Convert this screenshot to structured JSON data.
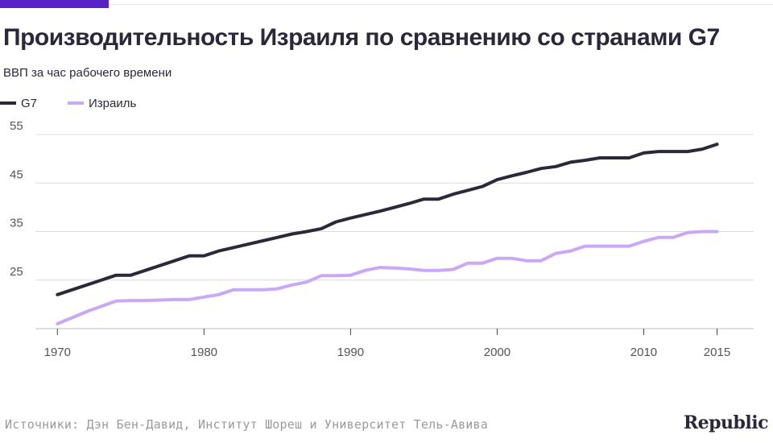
{
  "header": {
    "title": "Производительность Израиля по сравнению со странами G7",
    "subtitle": "ВВП за час рабочего времени"
  },
  "colors": {
    "accent": "#5b21c9",
    "g7": "#2b2839",
    "israel": "#c9a8f5",
    "grid": "#dcdcdc"
  },
  "legend": [
    {
      "label": "G7",
      "color": "#2b2839"
    },
    {
      "label": "Израиль",
      "color": "#c9a8f5"
    }
  ],
  "chart_data": {
    "type": "line",
    "title": "Производительность Израиля по сравнению со странами G7",
    "ylabel": "ВВП за час рабочего времени",
    "xlim": [
      1968.5,
      2017.5
    ],
    "ylim": [
      15,
      57
    ],
    "y_ticks": [
      25,
      35,
      45,
      55
    ],
    "x_ticks": [
      1970,
      1980,
      1990,
      2000,
      2010,
      2015
    ],
    "grid": true,
    "legend_position": "top-left",
    "series": [
      {
        "name": "G7",
        "color": "#2b2839",
        "x": [
          1970,
          1972,
          1974,
          1975,
          1976,
          1977,
          1978,
          1979,
          1980,
          1981,
          1982,
          1983,
          1984,
          1985,
          1986,
          1987,
          1988,
          1989,
          1990,
          1991,
          1992,
          1993,
          1994,
          1995,
          1996,
          1997,
          1998,
          1999,
          2000,
          2001,
          2002,
          2003,
          2004,
          2005,
          2006,
          2007,
          2008,
          2009,
          2010,
          2011,
          2012,
          2013,
          2014,
          2015
        ],
        "values": [
          22.0,
          24.0,
          26.0,
          26.0,
          27.0,
          28.0,
          29.0,
          30.0,
          30.0,
          31.0,
          31.7,
          32.4,
          33.1,
          33.8,
          34.5,
          35.0,
          35.6,
          37.0,
          37.8,
          38.5,
          39.2,
          40.0,
          40.8,
          41.7,
          41.7,
          42.7,
          43.5,
          44.3,
          45.7,
          46.5,
          47.2,
          48.0,
          48.4,
          49.3,
          49.7,
          50.2,
          50.2,
          50.2,
          51.2,
          51.5,
          51.5,
          51.5,
          52.0,
          53.0
        ]
      },
      {
        "name": "Израиль",
        "color": "#c9a8f5",
        "x": [
          1970,
          1972,
          1974,
          1975,
          1976,
          1977,
          1978,
          1979,
          1980,
          1981,
          1982,
          1983,
          1984,
          1985,
          1986,
          1987,
          1988,
          1989,
          1990,
          1991,
          1992,
          1993,
          1994,
          1995,
          1996,
          1997,
          1998,
          1999,
          2000,
          2001,
          2002,
          2003,
          2004,
          2005,
          2006,
          2007,
          2008,
          2009,
          2010,
          2011,
          2012,
          2013,
          2014,
          2015
        ],
        "values": [
          16.0,
          18.5,
          20.7,
          20.8,
          20.8,
          20.9,
          21.0,
          21.0,
          21.5,
          22.0,
          23.0,
          23.0,
          23.0,
          23.2,
          24.0,
          24.6,
          25.9,
          25.9,
          26.0,
          27.0,
          27.6,
          27.5,
          27.3,
          27.0,
          27.0,
          27.2,
          28.5,
          28.5,
          29.5,
          29.5,
          29.0,
          29.0,
          30.5,
          31.0,
          32.0,
          32.0,
          32.0,
          32.0,
          33.0,
          33.8,
          33.8,
          34.8,
          35.0,
          35.0
        ]
      }
    ]
  },
  "footer": {
    "source": "Источники: Дэн Бен-Давид, Институт Шореш и Университет Тель-Авива",
    "brand": "Republic"
  }
}
